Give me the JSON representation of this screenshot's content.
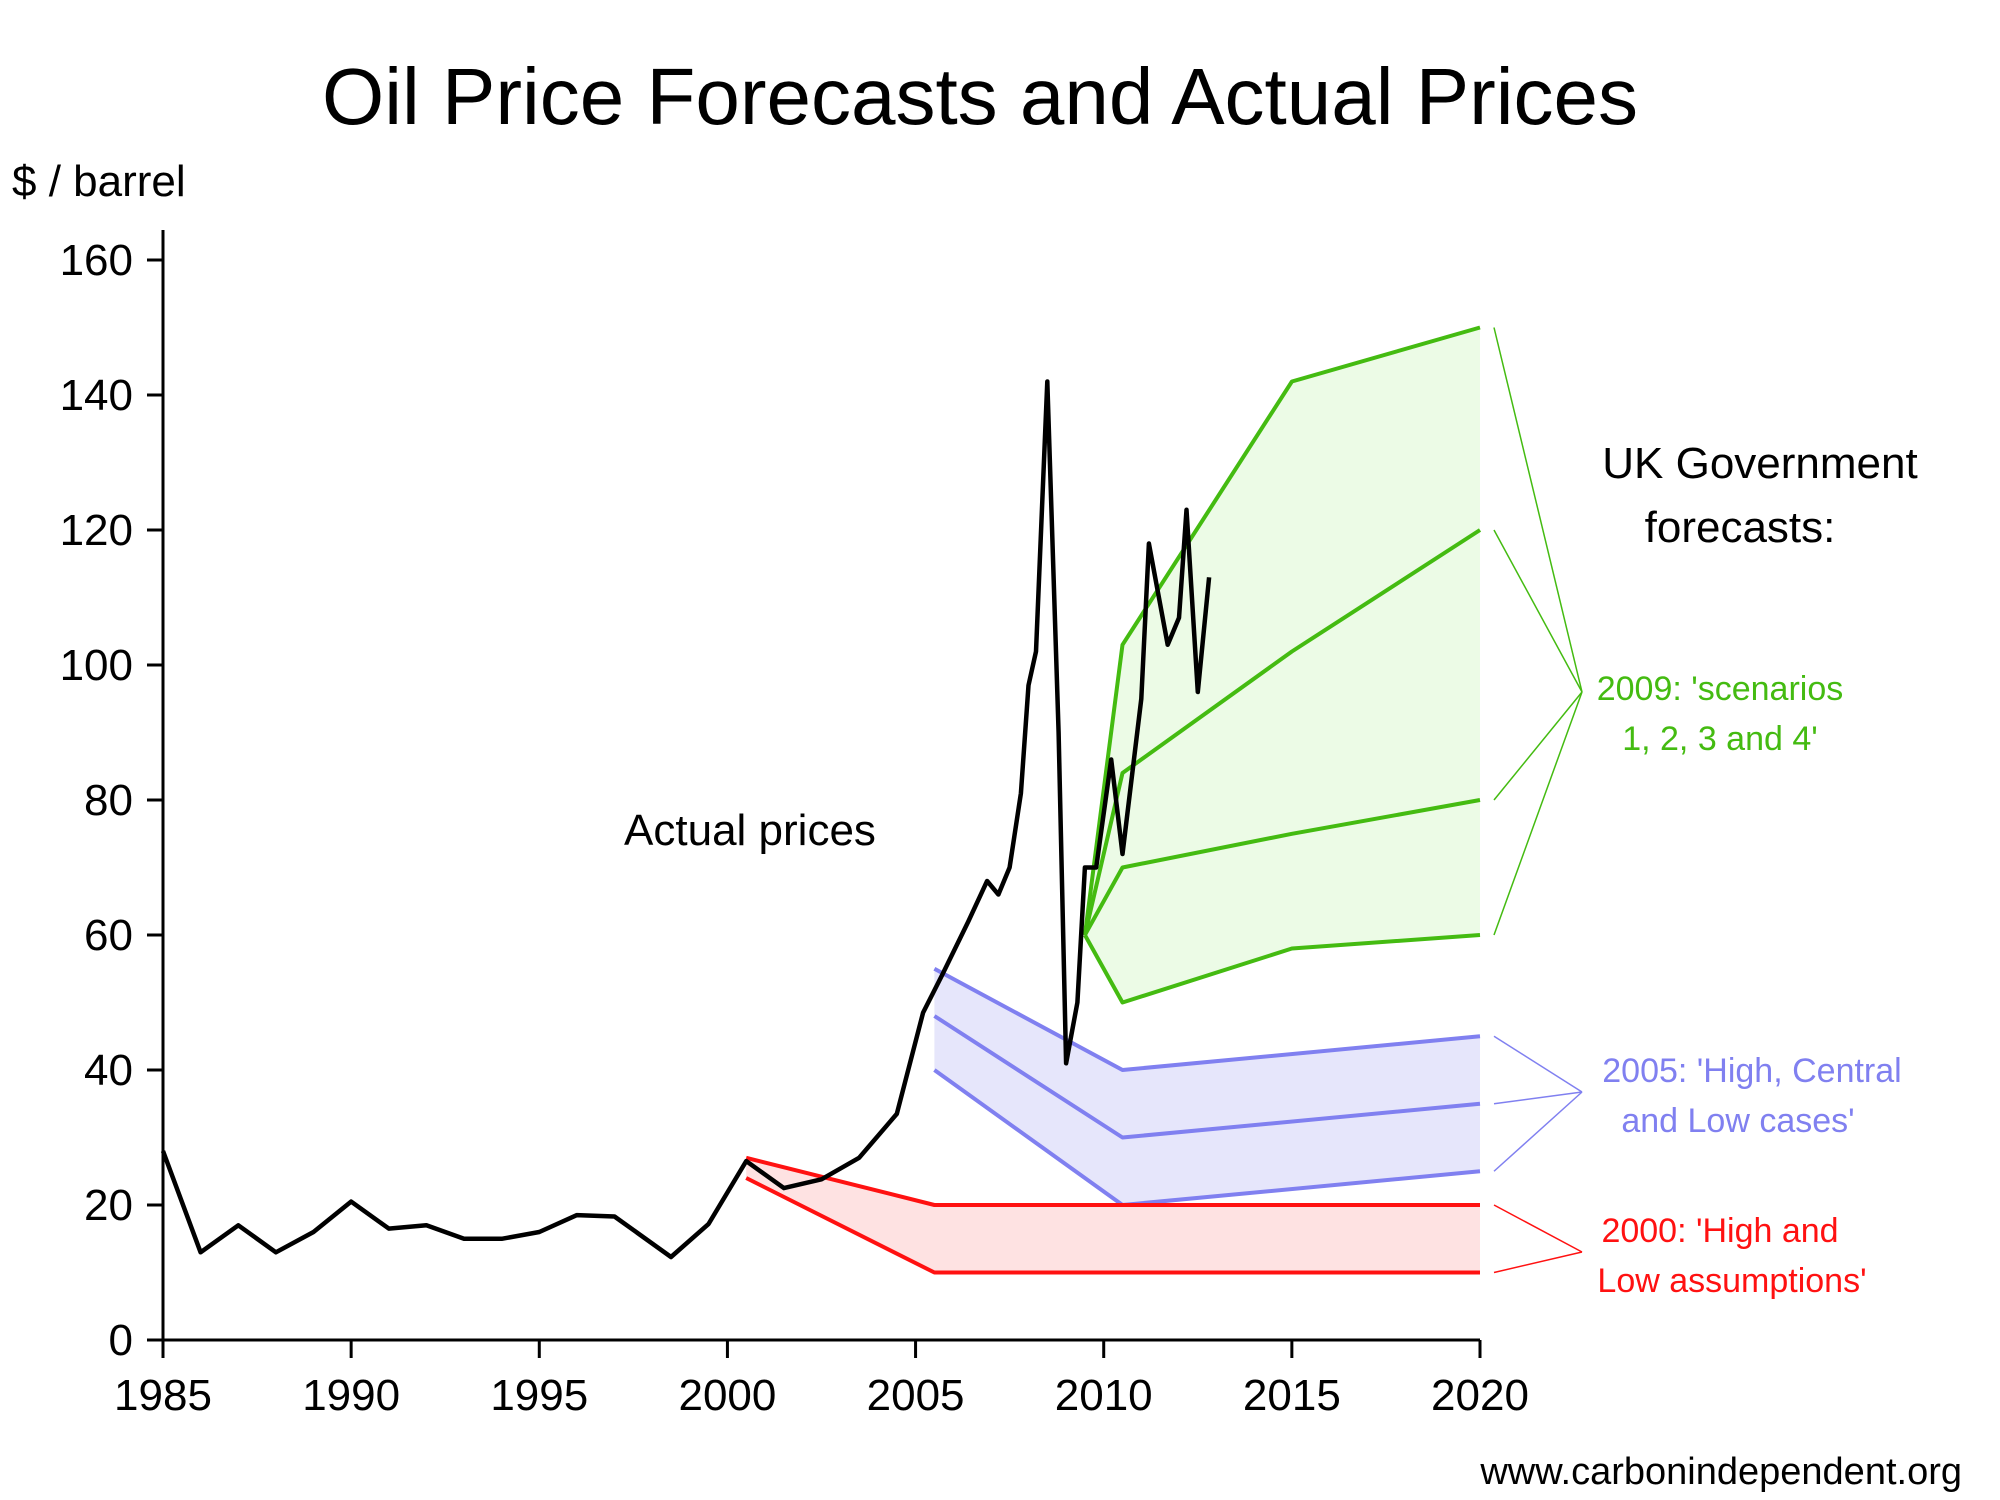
{
  "chart_data": {
    "type": "line",
    "title": "Oil Price Forecasts and Actual Prices",
    "ylabel": "$ / barrel",
    "xlabel": "",
    "xlim": [
      1985,
      2020
    ],
    "ylim": [
      0,
      160
    ],
    "x_ticks": [
      "1985",
      "1990",
      "1995",
      "2000",
      "2005",
      "2010",
      "2015",
      "2020"
    ],
    "y_ticks": [
      "0",
      "20",
      "40",
      "60",
      "80",
      "100",
      "120",
      "140",
      "160"
    ],
    "grid": false,
    "annotations": {
      "actual": "Actual prices",
      "uk_gov": [
        "UK Government",
        "forecasts:"
      ],
      "footer": "www.carbonindependent.org"
    },
    "actual": {
      "color": "#000000",
      "points": [
        [
          1985,
          28
        ],
        [
          1986,
          13
        ],
        [
          1987,
          17
        ],
        [
          1988,
          13
        ],
        [
          1989,
          16
        ],
        [
          1990,
          20.5
        ],
        [
          1991,
          16.5
        ],
        [
          1992,
          17
        ],
        [
          1993,
          15
        ],
        [
          1994,
          15
        ],
        [
          1995,
          16
        ],
        [
          1996,
          18.5
        ],
        [
          1997,
          18.3
        ],
        [
          1998.5,
          12.3
        ],
        [
          1999.5,
          17.2
        ],
        [
          2000.5,
          26.5
        ],
        [
          2001.5,
          22.5
        ],
        [
          2002.5,
          23.8
        ],
        [
          2003.5,
          27
        ],
        [
          2004.5,
          33.5
        ],
        [
          2005.2,
          48.5
        ],
        [
          2005.7,
          54
        ],
        [
          2006.4,
          62
        ],
        [
          2006.9,
          68
        ],
        [
          2007.2,
          66
        ],
        [
          2007.5,
          70
        ],
        [
          2007.8,
          81
        ],
        [
          2008.0,
          97
        ],
        [
          2008.2,
          102
        ],
        [
          2008.5,
          142
        ],
        [
          2008.8,
          90
        ],
        [
          2009.0,
          41
        ],
        [
          2009.3,
          50
        ],
        [
          2009.5,
          70
        ],
        [
          2009.8,
          70
        ],
        [
          2010.2,
          86
        ],
        [
          2010.5,
          72
        ],
        [
          2011.0,
          95
        ],
        [
          2011.2,
          118
        ],
        [
          2011.7,
          103
        ],
        [
          2012.0,
          107
        ],
        [
          2012.2,
          123
        ],
        [
          2012.5,
          96
        ],
        [
          2012.8,
          113
        ]
      ]
    },
    "forecast_groups": [
      {
        "label": [
          "2009: 'scenarios",
          "1, 2, 3 and 4'"
        ],
        "color": "#44bb11",
        "fill": "#ecfbe6",
        "series": [
          {
            "points": [
              [
                2009.5,
                60
              ],
              [
                2010.5,
                103
              ],
              [
                2015,
                142
              ],
              [
                2020,
                150
              ]
            ]
          },
          {
            "points": [
              [
                2009.5,
                60
              ],
              [
                2010.5,
                84
              ],
              [
                2015,
                102
              ],
              [
                2020,
                120
              ]
            ]
          },
          {
            "points": [
              [
                2009.5,
                60
              ],
              [
                2010.5,
                70
              ],
              [
                2015,
                75
              ],
              [
                2020,
                80
              ]
            ]
          },
          {
            "points": [
              [
                2009.5,
                60
              ],
              [
                2010.5,
                50
              ],
              [
                2015,
                58
              ],
              [
                2020,
                60
              ]
            ]
          }
        ]
      },
      {
        "label": [
          "2005: 'High, Central",
          "and Low cases'"
        ],
        "color": "#8080f0",
        "fill": "#e6e6fb",
        "series": [
          {
            "points": [
              [
                2005.5,
                55
              ],
              [
                2010.5,
                40
              ],
              [
                2020,
                45
              ]
            ]
          },
          {
            "points": [
              [
                2005.5,
                48
              ],
              [
                2010.5,
                30
              ],
              [
                2020,
                35
              ]
            ]
          },
          {
            "points": [
              [
                2005.5,
                40
              ],
              [
                2010.5,
                20
              ],
              [
                2020,
                25
              ]
            ]
          }
        ]
      },
      {
        "label": [
          "2000: 'High and",
          "Low assumptions'"
        ],
        "color": "#ff1111",
        "fill": "#fee2e2",
        "series": [
          {
            "points": [
              [
                2000.5,
                27
              ],
              [
                2005.5,
                20
              ],
              [
                2020,
                20
              ]
            ]
          },
          {
            "points": [
              [
                2000.5,
                24
              ],
              [
                2005.5,
                10
              ],
              [
                2020,
                10
              ]
            ]
          }
        ]
      }
    ]
  }
}
